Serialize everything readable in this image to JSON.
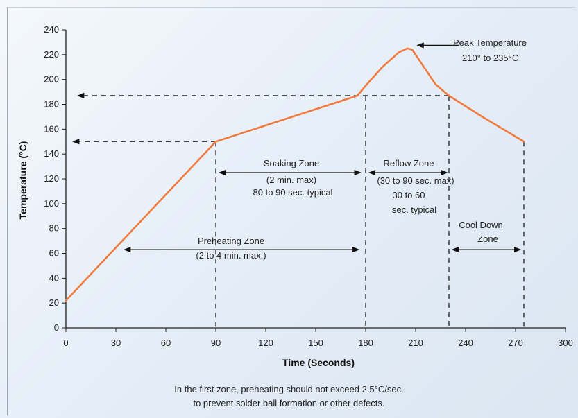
{
  "chart_data": {
    "type": "line",
    "xlabel": "Time (Seconds)",
    "ylabel": "Temperature (°C)",
    "xlim": [
      0,
      300
    ],
    "ylim": [
      0,
      240
    ],
    "xticks": [
      0,
      30,
      60,
      90,
      120,
      150,
      180,
      210,
      240,
      270,
      300
    ],
    "yticks": [
      0,
      20,
      40,
      60,
      80,
      100,
      120,
      140,
      160,
      180,
      200,
      220,
      240
    ],
    "grid": false,
    "line_color": "#f07a3e",
    "series": [
      {
        "x": [
          0,
          90,
          175,
          180,
          190,
          200,
          205,
          208,
          215,
          222,
          230,
          250,
          275
        ],
        "values": [
          22,
          150,
          187,
          195,
          210,
          222,
          225,
          224,
          210,
          196,
          187,
          170,
          150
        ]
      }
    ],
    "annotations": {
      "peak_line1": "Peak Temperature",
      "peak_line2": "210° to 235°C",
      "soak_line1": "Soaking Zone",
      "soak_line2": "(2 min. max)",
      "soak_line3": "80 to 90 sec. typical",
      "reflow_line1": "Reflow Zone",
      "reflow_line2": "(30 to 90 sec. max)",
      "reflow_line3": "30 to 60",
      "reflow_line4": "sec. typical",
      "preheat_line1": "Preheating Zone",
      "preheat_line2": "(2 to 4 min. max.)",
      "cool_line1": "Cool Down",
      "cool_line2": "Zone"
    }
  },
  "caption": {
    "line1": "In the first zone, preheating should not exceed 2.5°C/sec.",
    "line2": "to prevent solder ball formation or other defects."
  }
}
